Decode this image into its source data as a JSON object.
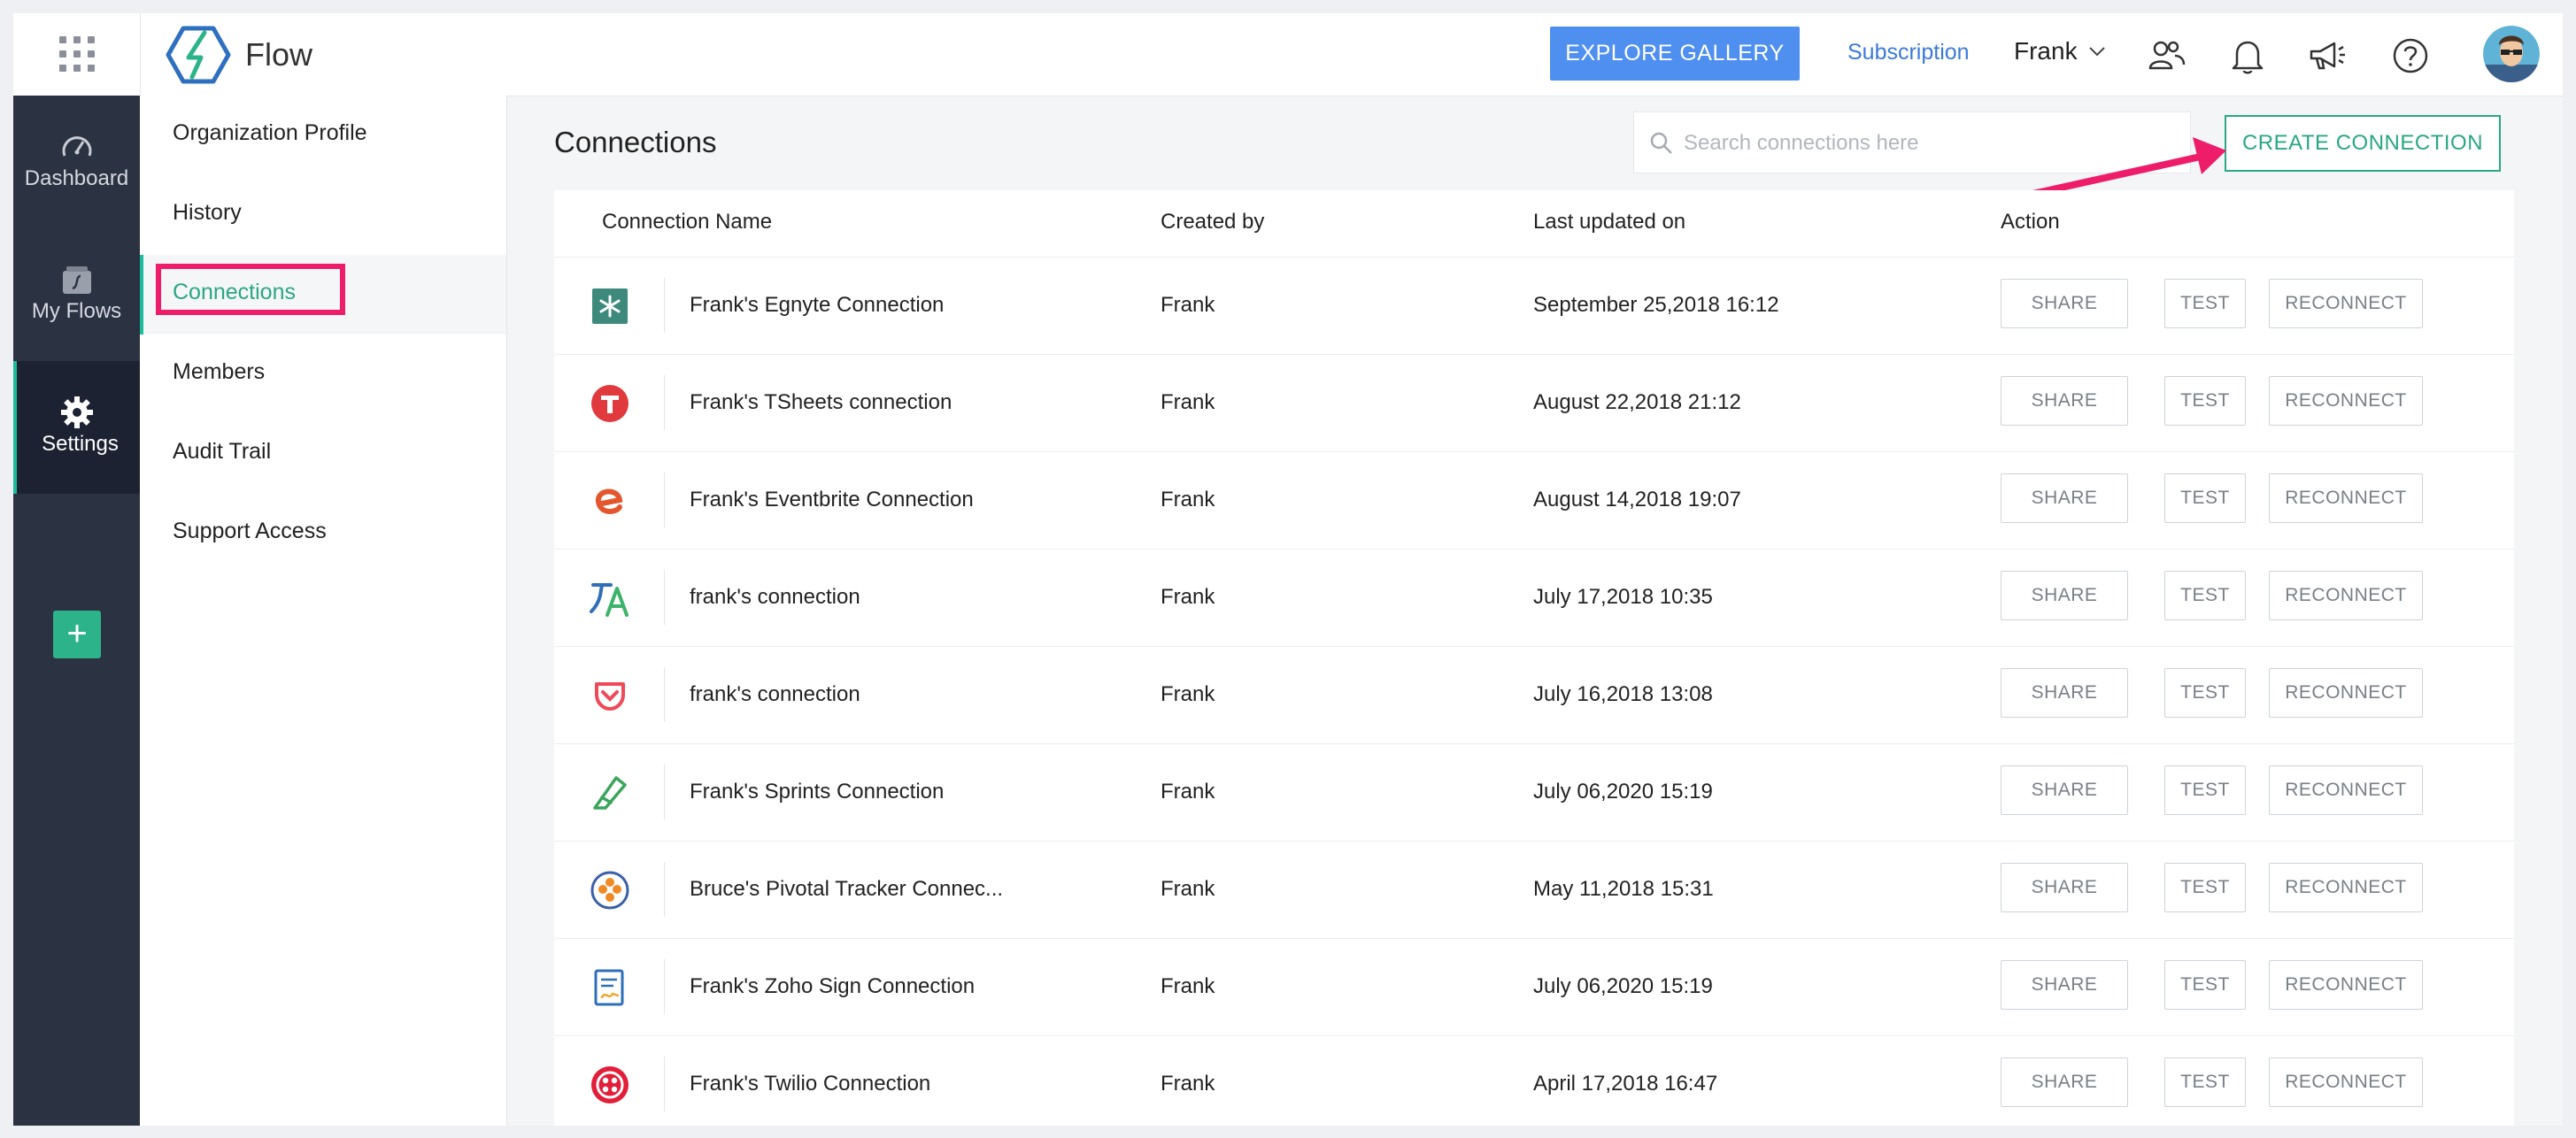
{
  "header": {
    "brand": "Flow",
    "explore_label": "EXPLORE GALLERY",
    "subscription_label": "Subscription",
    "user_name": "Frank"
  },
  "nav": {
    "dashboard": "Dashboard",
    "my_flows": "My Flows",
    "settings": "Settings"
  },
  "submenu": {
    "items": [
      "Organization Profile",
      "History",
      "Connections",
      "Members",
      "Audit Trail",
      "Support Access"
    ]
  },
  "main": {
    "title": "Connections",
    "search_placeholder": "Search connections here",
    "create_label": "CREATE CONNECTION",
    "columns": [
      "Connection Name",
      "Created by",
      "Last updated on",
      "Action"
    ],
    "action_labels": {
      "share": "SHARE",
      "test": "TEST",
      "reconnect": "RECONNECT"
    },
    "rows": [
      {
        "icon": "egnyte-icon",
        "name": "Frank's Egnyte Connection",
        "created_by": "Frank",
        "updated": "September 25,2018 16:12"
      },
      {
        "icon": "tsheets-icon",
        "name": "Frank's TSheets connection",
        "created_by": "Frank",
        "updated": "August 22,2018 21:12"
      },
      {
        "icon": "eventbrite-icon",
        "name": "Frank's Eventbrite Connection",
        "created_by": "Frank",
        "updated": "August 14,2018 19:07"
      },
      {
        "icon": "translate-icon",
        "name": "frank's connection",
        "created_by": "Frank",
        "updated": "July 17,2018 10:35"
      },
      {
        "icon": "heart-pocket-icon",
        "name": "frank's connection",
        "created_by": "Frank",
        "updated": "July 16,2018 13:08"
      },
      {
        "icon": "sprints-icon",
        "name": "Frank's Sprints Connection",
        "created_by": "Frank",
        "updated": "July 06,2020 15:19"
      },
      {
        "icon": "pivotal-tracker-icon",
        "name": "Bruce's Pivotal Tracker Connec...",
        "created_by": "Frank",
        "updated": "May 11,2018 15:31"
      },
      {
        "icon": "zoho-sign-icon",
        "name": "Frank's Zoho Sign Connection",
        "created_by": "Frank",
        "updated": "July 06,2020 15:19"
      },
      {
        "icon": "twilio-icon",
        "name": "Frank's Twilio Connection",
        "created_by": "Frank",
        "updated": "April 17,2018 16:47"
      }
    ]
  },
  "colors": {
    "accent_green": "#2aa783",
    "primary_blue": "#4f8ff0",
    "highlight_pink": "#ee1d6a",
    "sidebar_dark": "#2b3242"
  }
}
